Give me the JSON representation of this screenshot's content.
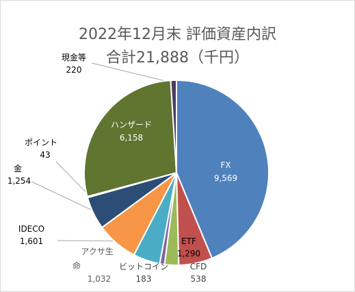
{
  "chart_data": {
    "type": "pie",
    "title": "2022年12月末 評価資産内訳",
    "subtitle": "合計21,888（千円）",
    "slices": [
      {
        "name": "FX",
        "value": 9569,
        "value_label": "9,569",
        "color": "#4f81bd"
      },
      {
        "name": "ETF",
        "value": 1290,
        "value_label": "1,290",
        "color": "#c0504d"
      },
      {
        "name": "CFD",
        "value": 538,
        "value_label": "538",
        "color": "#9bbb59"
      },
      {
        "name": "ビットコイン",
        "value": 183,
        "value_label": "183",
        "color": "#8064a2"
      },
      {
        "name": "アクサ生命",
        "value": 1032,
        "value_label": "1,032",
        "color": "#4bacc6"
      },
      {
        "name": "IDECO",
        "value": 1601,
        "value_label": "1,601",
        "color": "#f79646"
      },
      {
        "name": "金",
        "value": 1254,
        "value_label": "1,254",
        "color": "#2c4d75"
      },
      {
        "name": "ポイント",
        "value": 43,
        "value_label": "43",
        "color": "#772c2a"
      },
      {
        "name": "ハンザード",
        "value": 6158,
        "value_label": "6,158",
        "color": "#5f7530"
      },
      {
        "name": "現金等",
        "value": 220,
        "value_label": "220",
        "color": "#4d3b62"
      }
    ]
  }
}
